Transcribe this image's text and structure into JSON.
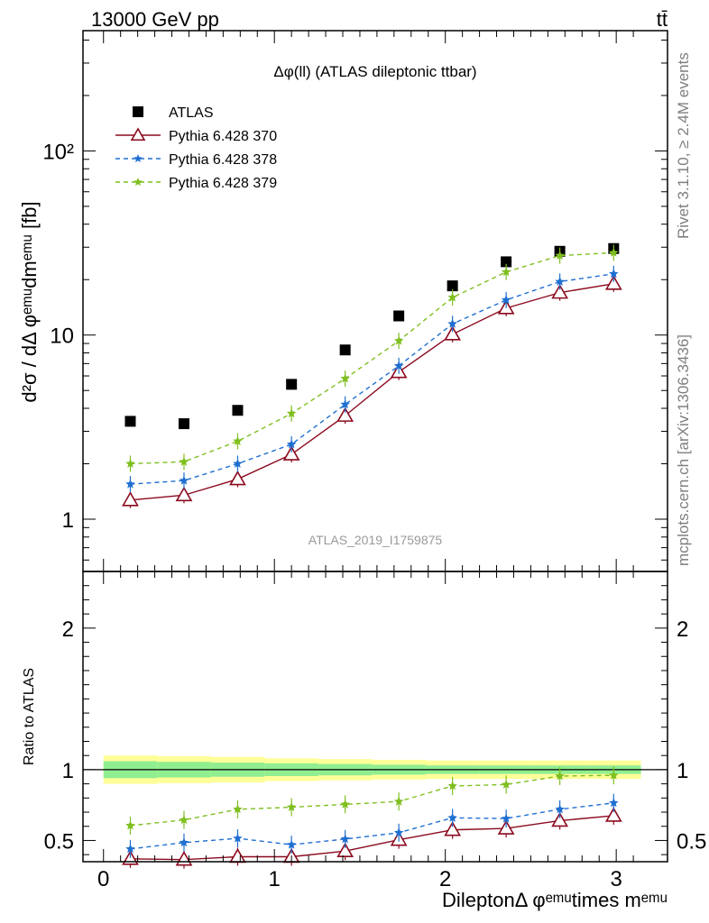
{
  "header": {
    "left": "13000 GeV pp",
    "right": "tt̄"
  },
  "side_labels": {
    "rivet": "Rivet 3.1.10, ≥ 2.4M events",
    "mcplots": "mcplots.cern.ch [arXiv:1306.3436]"
  },
  "watermark": "ATLAS_2019_I1759875",
  "chart_data": [
    {
      "type": "scatter",
      "panel": "main",
      "title": "Δφ(ll) (ATLAS dileptonic ttbar)",
      "ylabel": "d²σ / dΔ φᵉᵐᵘdmᵉᵐᵘ [fb]",
      "yscale": "log",
      "ylim": [
        0.52,
        450
      ],
      "xlim": [
        -0.12,
        3.3
      ],
      "yticks": [
        1,
        10,
        100
      ],
      "ytick_labels": [
        "1",
        "10",
        "10²"
      ],
      "x": [
        0.157,
        0.471,
        0.785,
        1.1,
        1.414,
        1.728,
        2.042,
        2.356,
        2.67,
        2.985
      ],
      "legend_position": "top-left",
      "series": [
        {
          "name": "ATLAS",
          "marker": "square",
          "color": "#000000",
          "values": [
            3.4,
            3.3,
            3.9,
            5.4,
            8.3,
            12.7,
            18.5,
            25,
            28.5,
            29.5
          ]
        },
        {
          "name": "Pythia 6.428 370",
          "marker": "triangle",
          "line": "solid",
          "color": "#8b0a1f",
          "values": [
            1.27,
            1.35,
            1.65,
            2.25,
            3.65,
            6.3,
            10.1,
            14,
            17,
            19
          ]
        },
        {
          "name": "Pythia 6.428 378",
          "marker": "star",
          "line": "dashed",
          "color": "#1f6fd1",
          "values": [
            1.55,
            1.62,
            2.0,
            2.55,
            4.2,
            6.8,
            11.5,
            15.5,
            19.5,
            21.5
          ]
        },
        {
          "name": "Pythia 6.428 379",
          "marker": "star",
          "line": "dashed",
          "color": "#7fbf1f",
          "values": [
            2.0,
            2.05,
            2.65,
            3.75,
            5.8,
            9.3,
            16.0,
            22.0,
            27.0,
            28.0
          ]
        }
      ]
    },
    {
      "type": "scatter",
      "panel": "ratio",
      "ylabel": "Ratio to ATLAS",
      "xlabel": "DileptonΔ φᵉᵐᵘtimes mᵉᵐᵘ",
      "ylim": [
        0.35,
        2.4
      ],
      "xlim": [
        -0.12,
        3.3
      ],
      "yticks": [
        0.5,
        1,
        2
      ],
      "ytick_labels": [
        "0.5",
        "1",
        "2"
      ],
      "xticks": [
        0,
        1,
        2,
        3
      ],
      "xtick_labels": [
        "0",
        "1",
        "2",
        "3"
      ],
      "x": [
        0.157,
        0.471,
        0.785,
        1.1,
        1.414,
        1.728,
        2.042,
        2.356,
        2.67,
        2.985
      ],
      "band_edges": [
        0,
        0.314,
        0.628,
        0.942,
        1.257,
        1.571,
        1.885,
        2.199,
        2.513,
        2.827,
        3.142
      ],
      "band_stat": [
        0.06,
        0.055,
        0.05,
        0.045,
        0.04,
        0.035,
        0.03,
        0.03,
        0.03,
        0.03
      ],
      "band_total": [
        0.1,
        0.095,
        0.09,
        0.08,
        0.075,
        0.07,
        0.065,
        0.065,
        0.065,
        0.065
      ],
      "band_colors": {
        "stat": "#90ee90",
        "total": "#ffff99"
      },
      "series": [
        {
          "name": "Pythia 6.428 370",
          "color": "#8b0a1f",
          "values": [
            0.37,
            0.365,
            0.385,
            0.385,
            0.425,
            0.505,
            0.575,
            0.585,
            0.64,
            0.675
          ]
        },
        {
          "name": "Pythia 6.428 378",
          "color": "#1f6fd1",
          "values": [
            0.44,
            0.485,
            0.515,
            0.47,
            0.51,
            0.555,
            0.66,
            0.655,
            0.72,
            0.765
          ]
        },
        {
          "name": "Pythia 6.428 379",
          "color": "#7fbf1f",
          "values": [
            0.605,
            0.645,
            0.72,
            0.735,
            0.755,
            0.775,
            0.885,
            0.895,
            0.955,
            0.96
          ]
        }
      ]
    }
  ]
}
